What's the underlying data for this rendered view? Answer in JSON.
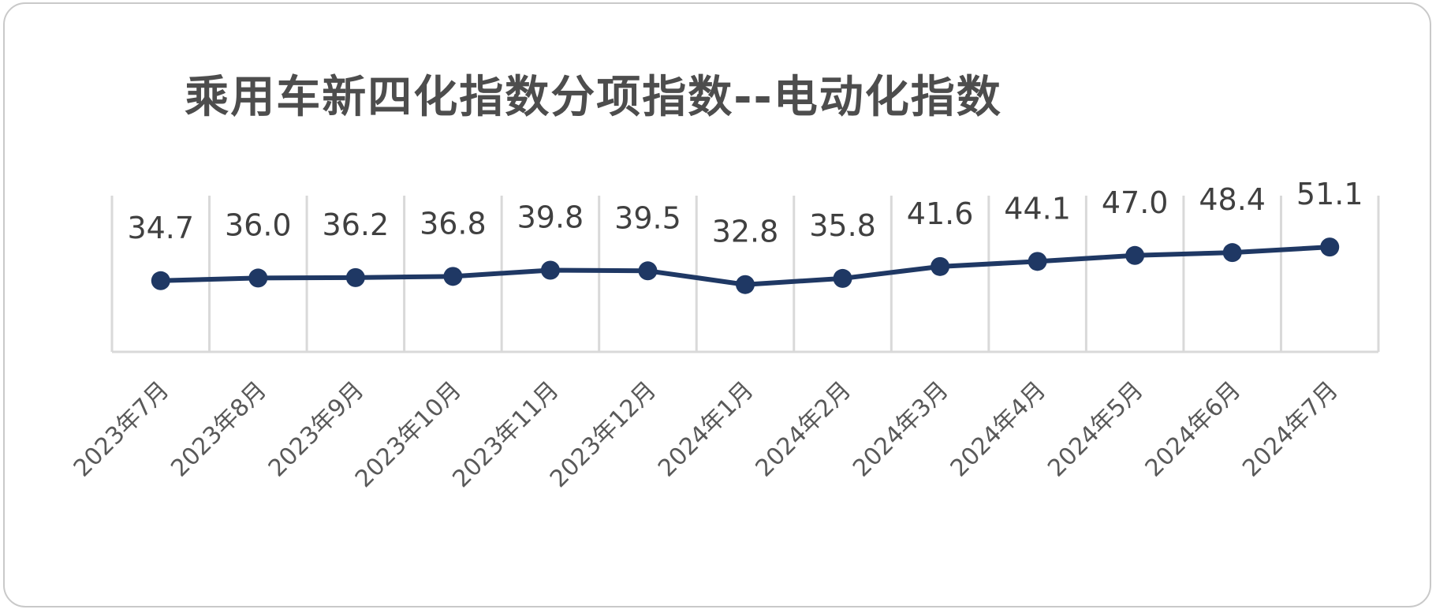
{
  "chart_data": {
    "type": "line",
    "title": "乘用车新四化指数分项指数--电动化指数",
    "xlabel": "",
    "ylabel": "",
    "categories": [
      "2023年7月",
      "2023年8月",
      "2023年9月",
      "2023年10月",
      "2023年11月",
      "2023年12月",
      "2024年1月",
      "2024年2月",
      "2024年3月",
      "2024年4月",
      "2024年5月",
      "2024年6月",
      "2024年7月"
    ],
    "series": [
      {
        "values": [
          34.7,
          36.0,
          36.2,
          36.8,
          39.8,
          39.5,
          32.8,
          35.8,
          41.6,
          44.1,
          47.0,
          48.4,
          51.1
        ]
      }
    ],
    "ylim": [
      0,
      54
    ],
    "grid": "vertical",
    "legend": "none",
    "line_color": "#1f3864"
  }
}
